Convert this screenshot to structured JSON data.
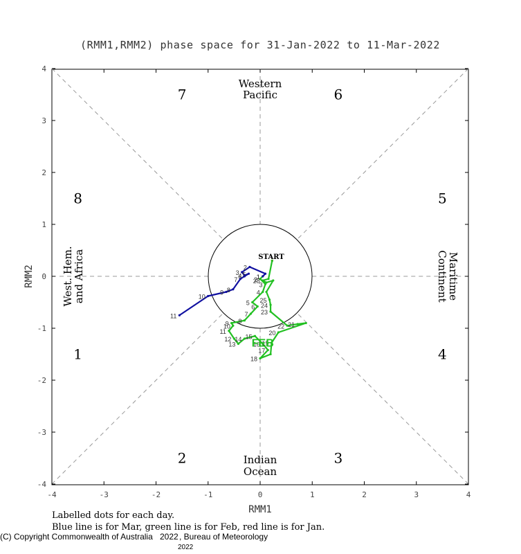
{
  "chart_data": {
    "type": "line",
    "title": "(RMM1,RMM2) phase space for 31-Jan-2022 to 11-Mar-2022",
    "xlabel": "RMM1",
    "ylabel": "RMM2",
    "xlim": [
      -4,
      4
    ],
    "ylim": [
      -4,
      4
    ],
    "x_ticks": [
      "-4",
      "-3",
      "-2",
      "-1",
      "0",
      "1",
      "2",
      "3",
      "4"
    ],
    "y_ticks": [
      "4",
      "3",
      "2",
      "1",
      "0",
      "-1",
      "-2",
      "-3",
      "-4"
    ],
    "grid": false,
    "phases": [
      "1",
      "2",
      "3",
      "4",
      "5",
      "6",
      "7",
      "8"
    ],
    "regions": {
      "top": [
        "Western",
        "Pacific"
      ],
      "bottom": [
        "Indian",
        "Ocean"
      ],
      "left": [
        "West. Hem.",
        "and Africa"
      ],
      "right": [
        "Maritime",
        "Continent"
      ]
    },
    "start_label": "START",
    "series": [
      {
        "name": "Jan",
        "color": "#ff0000",
        "points": [
          {
            "x": 0.23,
            "y": 0.3,
            "label": ""
          }
        ]
      },
      {
        "name": "Feb",
        "color": "#22c022",
        "month_label": "FEB",
        "points": [
          {
            "x": 0.23,
            "y": 0.3,
            "label": ""
          },
          {
            "x": 0.16,
            "y": -0.05,
            "label": ""
          },
          {
            "x": 0.05,
            "y": -0.08,
            "label": "28"
          },
          {
            "x": 0.12,
            "y": -0.12,
            "label": ""
          },
          {
            "x": 0.25,
            "y": -0.08,
            "label": ""
          },
          {
            "x": 0.12,
            "y": -0.3,
            "label": ""
          },
          {
            "x": 0.18,
            "y": -0.45,
            "label": "25"
          },
          {
            "x": 0.2,
            "y": -0.55,
            "label": "24"
          },
          {
            "x": 0.2,
            "y": -0.68,
            "label": "23"
          },
          {
            "x": 0.52,
            "y": -0.95,
            "label": "22"
          },
          {
            "x": 0.72,
            "y": -0.92,
            "label": "21"
          },
          {
            "x": 0.88,
            "y": -0.9,
            "label": ""
          },
          {
            "x": 0.35,
            "y": -1.08,
            "label": "20"
          },
          {
            "x": 0.22,
            "y": -1.28,
            "label": "19"
          },
          {
            "x": 0.2,
            "y": -1.5,
            "label": ""
          },
          {
            "x": 0.0,
            "y": -1.58,
            "label": "18"
          },
          {
            "x": 0.15,
            "y": -1.42,
            "label": "17"
          },
          {
            "x": 0.05,
            "y": -1.3,
            "label": "16"
          },
          {
            "x": -0.1,
            "y": -1.15,
            "label": "15"
          },
          {
            "x": -0.3,
            "y": -1.2,
            "label": "14"
          },
          {
            "x": -0.42,
            "y": -1.3,
            "label": "13"
          },
          {
            "x": -0.5,
            "y": -1.2,
            "label": "12"
          },
          {
            "x": -0.6,
            "y": -1.05,
            "label": "11"
          },
          {
            "x": -0.52,
            "y": -0.95,
            "label": "10"
          },
          {
            "x": -0.55,
            "y": -0.9,
            "label": "9"
          },
          {
            "x": -0.3,
            "y": -0.85,
            "label": "8"
          },
          {
            "x": -0.18,
            "y": -0.72,
            "label": "7"
          },
          {
            "x": -0.05,
            "y": -0.58,
            "label": "6"
          },
          {
            "x": -0.15,
            "y": -0.5,
            "label": "5"
          },
          {
            "x": 0.05,
            "y": -0.3,
            "label": "4"
          },
          {
            "x": 0.1,
            "y": -0.15,
            "label": "3"
          },
          {
            "x": 0.0,
            "y": -0.05,
            "label": "2"
          },
          {
            "x": 0.05,
            "y": 0.0,
            "label": "1"
          }
        ]
      },
      {
        "name": "Mar",
        "color": "#1010a0",
        "points": [
          {
            "x": 0.05,
            "y": 0.0,
            "label": "1"
          },
          {
            "x": 0.1,
            "y": 0.05,
            "label": ""
          },
          {
            "x": -0.2,
            "y": 0.18,
            "label": "2"
          },
          {
            "x": -0.35,
            "y": 0.08,
            "label": "3"
          },
          {
            "x": -0.3,
            "y": 0.02,
            "label": "4"
          },
          {
            "x": -0.22,
            "y": 0.05,
            "label": "5"
          },
          {
            "x": -0.3,
            "y": 0.0,
            "label": "6"
          },
          {
            "x": -0.38,
            "y": -0.05,
            "label": "7"
          },
          {
            "x": -0.52,
            "y": -0.25,
            "label": "8"
          },
          {
            "x": -0.65,
            "y": -0.3,
            "label": "9"
          },
          {
            "x": -1.0,
            "y": -0.38,
            "label": "10"
          },
          {
            "x": -1.55,
            "y": -0.75,
            "label": "11"
          }
        ]
      }
    ]
  },
  "footer": {
    "line1": "Labelled dots for each day.",
    "line2": "Blue line is for Mar, green line is for Feb, red line is for Jan.",
    "copyright": "(C) Copyright Commonwealth of Australia",
    "year_a": "2022",
    "bureau": ", Bureau of Meteorology",
    "year_b": "2022"
  }
}
